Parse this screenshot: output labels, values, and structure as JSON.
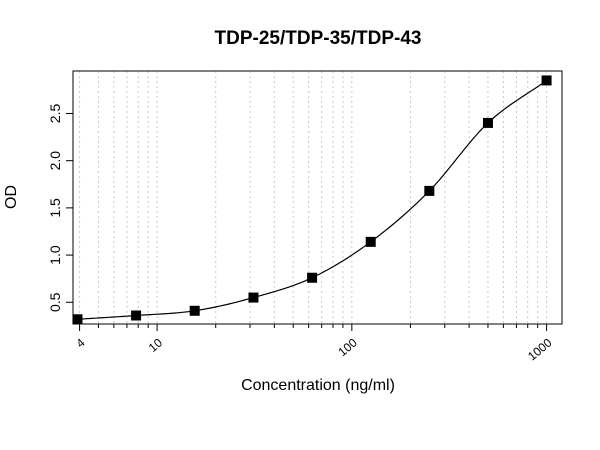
{
  "chart_data": {
    "type": "scatter",
    "title": "TDP-25/TDP-35/TDP-43",
    "xlabel": "Concentration (ng/ml)",
    "ylabel": "OD",
    "x_scale": "log",
    "xlim": [
      3.7,
      1200
    ],
    "ylim": [
      0.27,
      2.95
    ],
    "x_ticks": [
      4,
      10,
      100,
      1000
    ],
    "x_tick_labels": [
      "4",
      "10",
      "100",
      "1000"
    ],
    "y_ticks": [
      0.5,
      1.0,
      1.5,
      2.0,
      2.5
    ],
    "y_tick_labels": [
      "0.5",
      "1.0",
      "1.5",
      "2.0",
      "2.5"
    ],
    "grid": "vertical dotted at log minor ticks",
    "marker": "filled square",
    "series": [
      {
        "x": [
          3.9,
          7.8,
          15.6,
          31.25,
          62.5,
          125,
          250,
          500,
          1000
        ],
        "y": [
          0.32,
          0.36,
          0.41,
          0.55,
          0.76,
          1.14,
          1.68,
          2.4,
          2.85
        ]
      }
    ],
    "fit_curve": "smooth sigmoid through points"
  }
}
